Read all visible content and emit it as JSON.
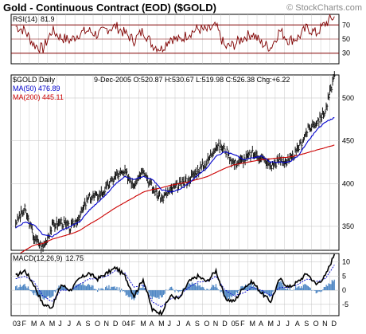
{
  "header": {
    "title": "Gold - Continuous Contract (EOD) ($GOLD)",
    "watermark": "© StockCharts.com"
  },
  "colors": {
    "frame": "#000000",
    "price_bars": "#000000",
    "ma50": "#0000cc",
    "ma200": "#cc0000",
    "rsi_line": "#800000",
    "rsi_bands": "#800000",
    "macd_line": "#000000",
    "macd_signal": "#0000cc",
    "macd_hist": "#4f87c4",
    "grid": "#bdbdbd"
  },
  "chart_data": [
    {
      "type": "line",
      "panel": "rsi",
      "label": "RSI(14)",
      "value_label": "81.9",
      "ylim": [
        15,
        85
      ],
      "y_ticks": [
        30,
        50,
        70
      ],
      "grid": true,
      "series": [
        {
          "name": "RSI(14)",
          "x": [
            "2003-01",
            "2003-02",
            "2003-03",
            "2003-04",
            "2003-05",
            "2003-06",
            "2003-07",
            "2003-08",
            "2003-09",
            "2003-10",
            "2003-11",
            "2003-12",
            "2004-01",
            "2004-02",
            "2004-03",
            "2004-04",
            "2004-05",
            "2004-06",
            "2004-07",
            "2004-08",
            "2004-09",
            "2004-10",
            "2004-11",
            "2004-12",
            "2005-01",
            "2005-02",
            "2005-03",
            "2005-04",
            "2005-05",
            "2005-06",
            "2005-07",
            "2005-08",
            "2005-09",
            "2005-10",
            "2005-11",
            "2005-12"
          ],
          "values": [
            68,
            62,
            42,
            36,
            62,
            52,
            48,
            58,
            62,
            56,
            64,
            68,
            58,
            48,
            62,
            42,
            36,
            52,
            48,
            58,
            64,
            62,
            68,
            38,
            42,
            52,
            58,
            44,
            38,
            62,
            48,
            52,
            66,
            58,
            72,
            82
          ]
        }
      ]
    },
    {
      "type": "line",
      "panel": "price",
      "label": "$GOLD Daily",
      "info": "9-Dec-2005 O:520.87 H:530.67 L:519.98 C:526.38 Chg:+6.22",
      "y_ticks": [
        350,
        400,
        450,
        500
      ],
      "ylim": [
        322,
        527
      ],
      "grid": true,
      "x_ticks": [
        "03",
        "F",
        "M",
        "A",
        "M",
        "J",
        "J",
        "A",
        "S",
        "O",
        "N",
        "D",
        "04",
        "F",
        "M",
        "A",
        "M",
        "J",
        "J",
        "A",
        "S",
        "O",
        "N",
        "D",
        "05",
        "F",
        "M",
        "A",
        "M",
        "J",
        "J",
        "A",
        "S",
        "O",
        "N",
        "D"
      ],
      "x": [
        "2003-01",
        "2003-02",
        "2003-03",
        "2003-04",
        "2003-05",
        "2003-06",
        "2003-07",
        "2003-08",
        "2003-09",
        "2003-10",
        "2003-11",
        "2003-12",
        "2004-01",
        "2004-02",
        "2004-03",
        "2004-04",
        "2004-05",
        "2004-06",
        "2004-07",
        "2004-08",
        "2004-09",
        "2004-10",
        "2004-11",
        "2004-12",
        "2005-01",
        "2005-02",
        "2005-03",
        "2005-04",
        "2005-05",
        "2005-06",
        "2005-07",
        "2005-08",
        "2005-09",
        "2005-10",
        "2005-11",
        "2005-12"
      ],
      "series": [
        {
          "name": "$GOLD Daily",
          "style": "hlc_bars",
          "values": [
            355,
            370,
            337,
            325,
            350,
            355,
            348,
            362,
            383,
            385,
            395,
            410,
            412,
            400,
            418,
            395,
            382,
            392,
            398,
            405,
            415,
            425,
            445,
            440,
            423,
            428,
            435,
            430,
            420,
            428,
            425,
            440,
            462,
            472,
            485,
            526
          ]
        },
        {
          "name": "MA(50) 476.89",
          "style": "line",
          "values": [
            348,
            355,
            352,
            340,
            338,
            345,
            350,
            355,
            368,
            378,
            388,
            400,
            408,
            405,
            408,
            405,
            393,
            390,
            393,
            400,
            410,
            418,
            432,
            437,
            434,
            428,
            430,
            432,
            425,
            425,
            425,
            432,
            448,
            462,
            472,
            477
          ]
        },
        {
          "name": "MA(200) 445.11",
          "style": "line",
          "values": [
            315,
            322,
            328,
            330,
            335,
            338,
            341,
            345,
            352,
            358,
            365,
            372,
            378,
            384,
            390,
            393,
            395,
            398,
            400,
            402,
            405,
            408,
            413,
            418,
            422,
            424,
            426,
            428,
            429,
            430,
            431,
            433,
            436,
            439,
            442,
            445
          ]
        }
      ]
    },
    {
      "type": "line",
      "panel": "macd",
      "label": "MACD(12,26,9)",
      "value_label": "12.75",
      "ylim": [
        -9,
        13
      ],
      "y_ticks": [
        -5,
        0,
        5,
        10
      ],
      "grid": true,
      "x": [
        "2003-01",
        "2003-02",
        "2003-03",
        "2003-04",
        "2003-05",
        "2003-06",
        "2003-07",
        "2003-08",
        "2003-09",
        "2003-10",
        "2003-11",
        "2003-12",
        "2004-01",
        "2004-02",
        "2004-03",
        "2004-04",
        "2004-05",
        "2004-06",
        "2004-07",
        "2004-08",
        "2004-09",
        "2004-10",
        "2004-11",
        "2004-12",
        "2005-01",
        "2005-02",
        "2005-03",
        "2005-04",
        "2005-05",
        "2005-06",
        "2005-07",
        "2005-08",
        "2005-09",
        "2005-10",
        "2005-11",
        "2005-12"
      ],
      "series": [
        {
          "name": "MACD",
          "values": [
            5,
            7,
            2,
            -5,
            -6,
            2,
            0,
            4,
            6,
            4,
            6,
            8,
            5,
            -2,
            4,
            -7,
            -8,
            -2,
            -3,
            3,
            5,
            3,
            7,
            -3,
            -4,
            1,
            3,
            -1,
            -4,
            4,
            1,
            3,
            6,
            2,
            5,
            12.75
          ]
        },
        {
          "name": "Signal",
          "values": [
            4,
            5,
            3,
            -2,
            -4,
            0,
            0,
            2,
            4,
            4,
            5,
            7,
            6,
            1,
            2,
            -4,
            -6,
            -3,
            -2,
            1,
            3,
            3,
            5,
            0,
            -2,
            -1,
            1,
            0,
            -2,
            1,
            1,
            2,
            4,
            3,
            4,
            9
          ]
        }
      ]
    }
  ]
}
